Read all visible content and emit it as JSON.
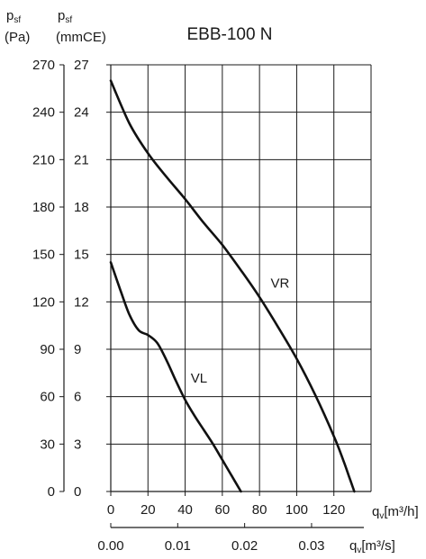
{
  "header": {
    "left_symbol": "p",
    "left_sub": "sf",
    "left_unit": "(Pa)",
    "right_symbol": "p",
    "right_sub": "sf",
    "right_unit": "(mmCE)"
  },
  "chart_data": {
    "type": "line",
    "title": "EBB-100 N",
    "x_axis_primary": {
      "quantity": "q",
      "quantity_sub": "v",
      "unit": "[m³/h]",
      "ticks": [
        "0",
        "20",
        "40",
        "60",
        "80",
        "100",
        "120"
      ],
      "range": [
        0,
        140
      ]
    },
    "x_axis_secondary": {
      "quantity": "q",
      "quantity_sub": "v",
      "unit": "[m³/s]",
      "ticks": [
        "0.00",
        "0.01",
        "0.02",
        "0.03"
      ],
      "tick_values": [
        0,
        0.01,
        0.02,
        0.03
      ]
    },
    "y_axis_outer": {
      "unit": "Pa",
      "ticks": [
        "0",
        "30",
        "60",
        "90",
        "120",
        "150",
        "180",
        "210",
        "240",
        "270"
      ],
      "range": [
        0,
        270
      ]
    },
    "y_axis_inner": {
      "unit": "mmCE",
      "ticks": [
        "0",
        "3",
        "6",
        "9",
        "12",
        "15",
        "18",
        "21",
        "24",
        "27"
      ],
      "range": [
        0,
        27
      ]
    },
    "grid": true,
    "series": [
      {
        "name": "VR",
        "x": [
          0,
          10,
          20,
          30,
          40,
          50,
          60,
          70,
          80,
          90,
          100,
          110,
          120,
          125,
          128,
          131
        ],
        "y": [
          26,
          23.3,
          21.4,
          19.9,
          18.5,
          17,
          15.6,
          14,
          12.3,
          10.4,
          8.4,
          6.1,
          3.5,
          2,
          1,
          0
        ]
      },
      {
        "name": "VL",
        "x": [
          0,
          5,
          10,
          15,
          20,
          25,
          30,
          35,
          40,
          45,
          50,
          55,
          60,
          65,
          70,
          72
        ],
        "y": [
          14.5,
          12.8,
          11.2,
          10.2,
          9.9,
          9.4,
          8.3,
          7,
          5.8,
          4.8,
          3.9,
          3,
          2,
          1,
          0,
          0
        ]
      }
    ],
    "annotations": [
      {
        "text": "VR",
        "x": 86,
        "y": 12.9
      },
      {
        "text": "VL",
        "x": 43,
        "y": 6.9
      }
    ]
  }
}
